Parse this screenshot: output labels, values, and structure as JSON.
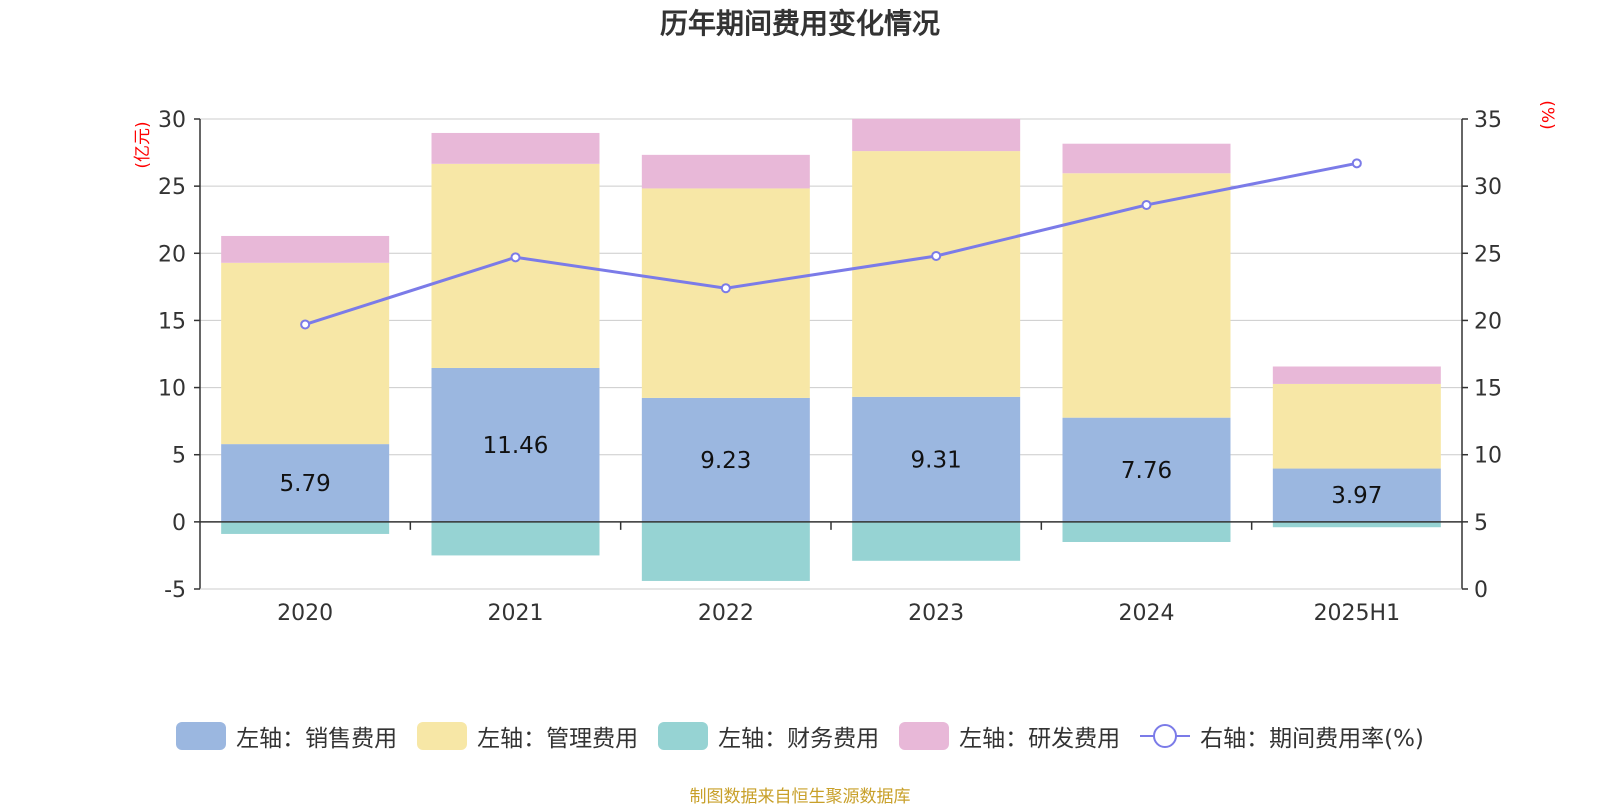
{
  "title": "历年期间费用变化情况",
  "source_note": "制图数据来自恒生聚源数据库",
  "colors": {
    "sales": "#9bb7e0",
    "admin": "#f7e7a6",
    "finance": "#96d3d3",
    "rnd": "#e8b8d8",
    "rate_line": "#7b7be8",
    "unit_label": "#ff0000",
    "grid": "#cccccc"
  },
  "legend": [
    {
      "key": "sales",
      "label": "左轴：销售费用",
      "kind": "bar"
    },
    {
      "key": "admin",
      "label": "左轴：管理费用",
      "kind": "bar"
    },
    {
      "key": "finance",
      "label": "左轴：财务费用",
      "kind": "bar"
    },
    {
      "key": "rnd",
      "label": "左轴：研发费用",
      "kind": "bar"
    },
    {
      "key": "rate",
      "label": "右轴：期间费用率(%)",
      "kind": "line"
    }
  ],
  "chart_data": {
    "type": "bar",
    "stacked": true,
    "title": "历年期间费用变化情况",
    "categories": [
      "2020",
      "2021",
      "2022",
      "2023",
      "2024",
      "2025H1"
    ],
    "y_left": {
      "label": "(亿元)",
      "range": [
        -5,
        30
      ],
      "ticks": [
        -5,
        0,
        5,
        10,
        15,
        20,
        25,
        30
      ]
    },
    "y_right": {
      "label": "(%)",
      "range": [
        0,
        35
      ],
      "ticks": [
        0,
        5,
        10,
        15,
        20,
        25,
        30,
        35
      ]
    },
    "grid": true,
    "legend_position": "bottom",
    "series": [
      {
        "name": "左轴：销售费用",
        "axis": "left",
        "values": [
          5.79,
          11.46,
          9.23,
          9.31,
          7.76,
          3.97
        ],
        "data_labels": true
      },
      {
        "name": "左轴：管理费用",
        "axis": "left",
        "values": [
          13.5,
          15.2,
          15.6,
          18.3,
          18.2,
          6.3
        ]
      },
      {
        "name": "左轴：财务费用",
        "axis": "left",
        "values": [
          -0.9,
          -2.5,
          -4.4,
          -2.9,
          -1.5,
          -0.4
        ]
      },
      {
        "name": "左轴：研发费用",
        "axis": "left",
        "values": [
          2.0,
          2.3,
          2.5,
          2.4,
          2.2,
          1.3
        ]
      },
      {
        "name": "右轴：期间费用率(%)",
        "axis": "right",
        "type": "line",
        "values": [
          19.7,
          24.7,
          22.4,
          24.8,
          28.6,
          31.7
        ]
      }
    ]
  }
}
